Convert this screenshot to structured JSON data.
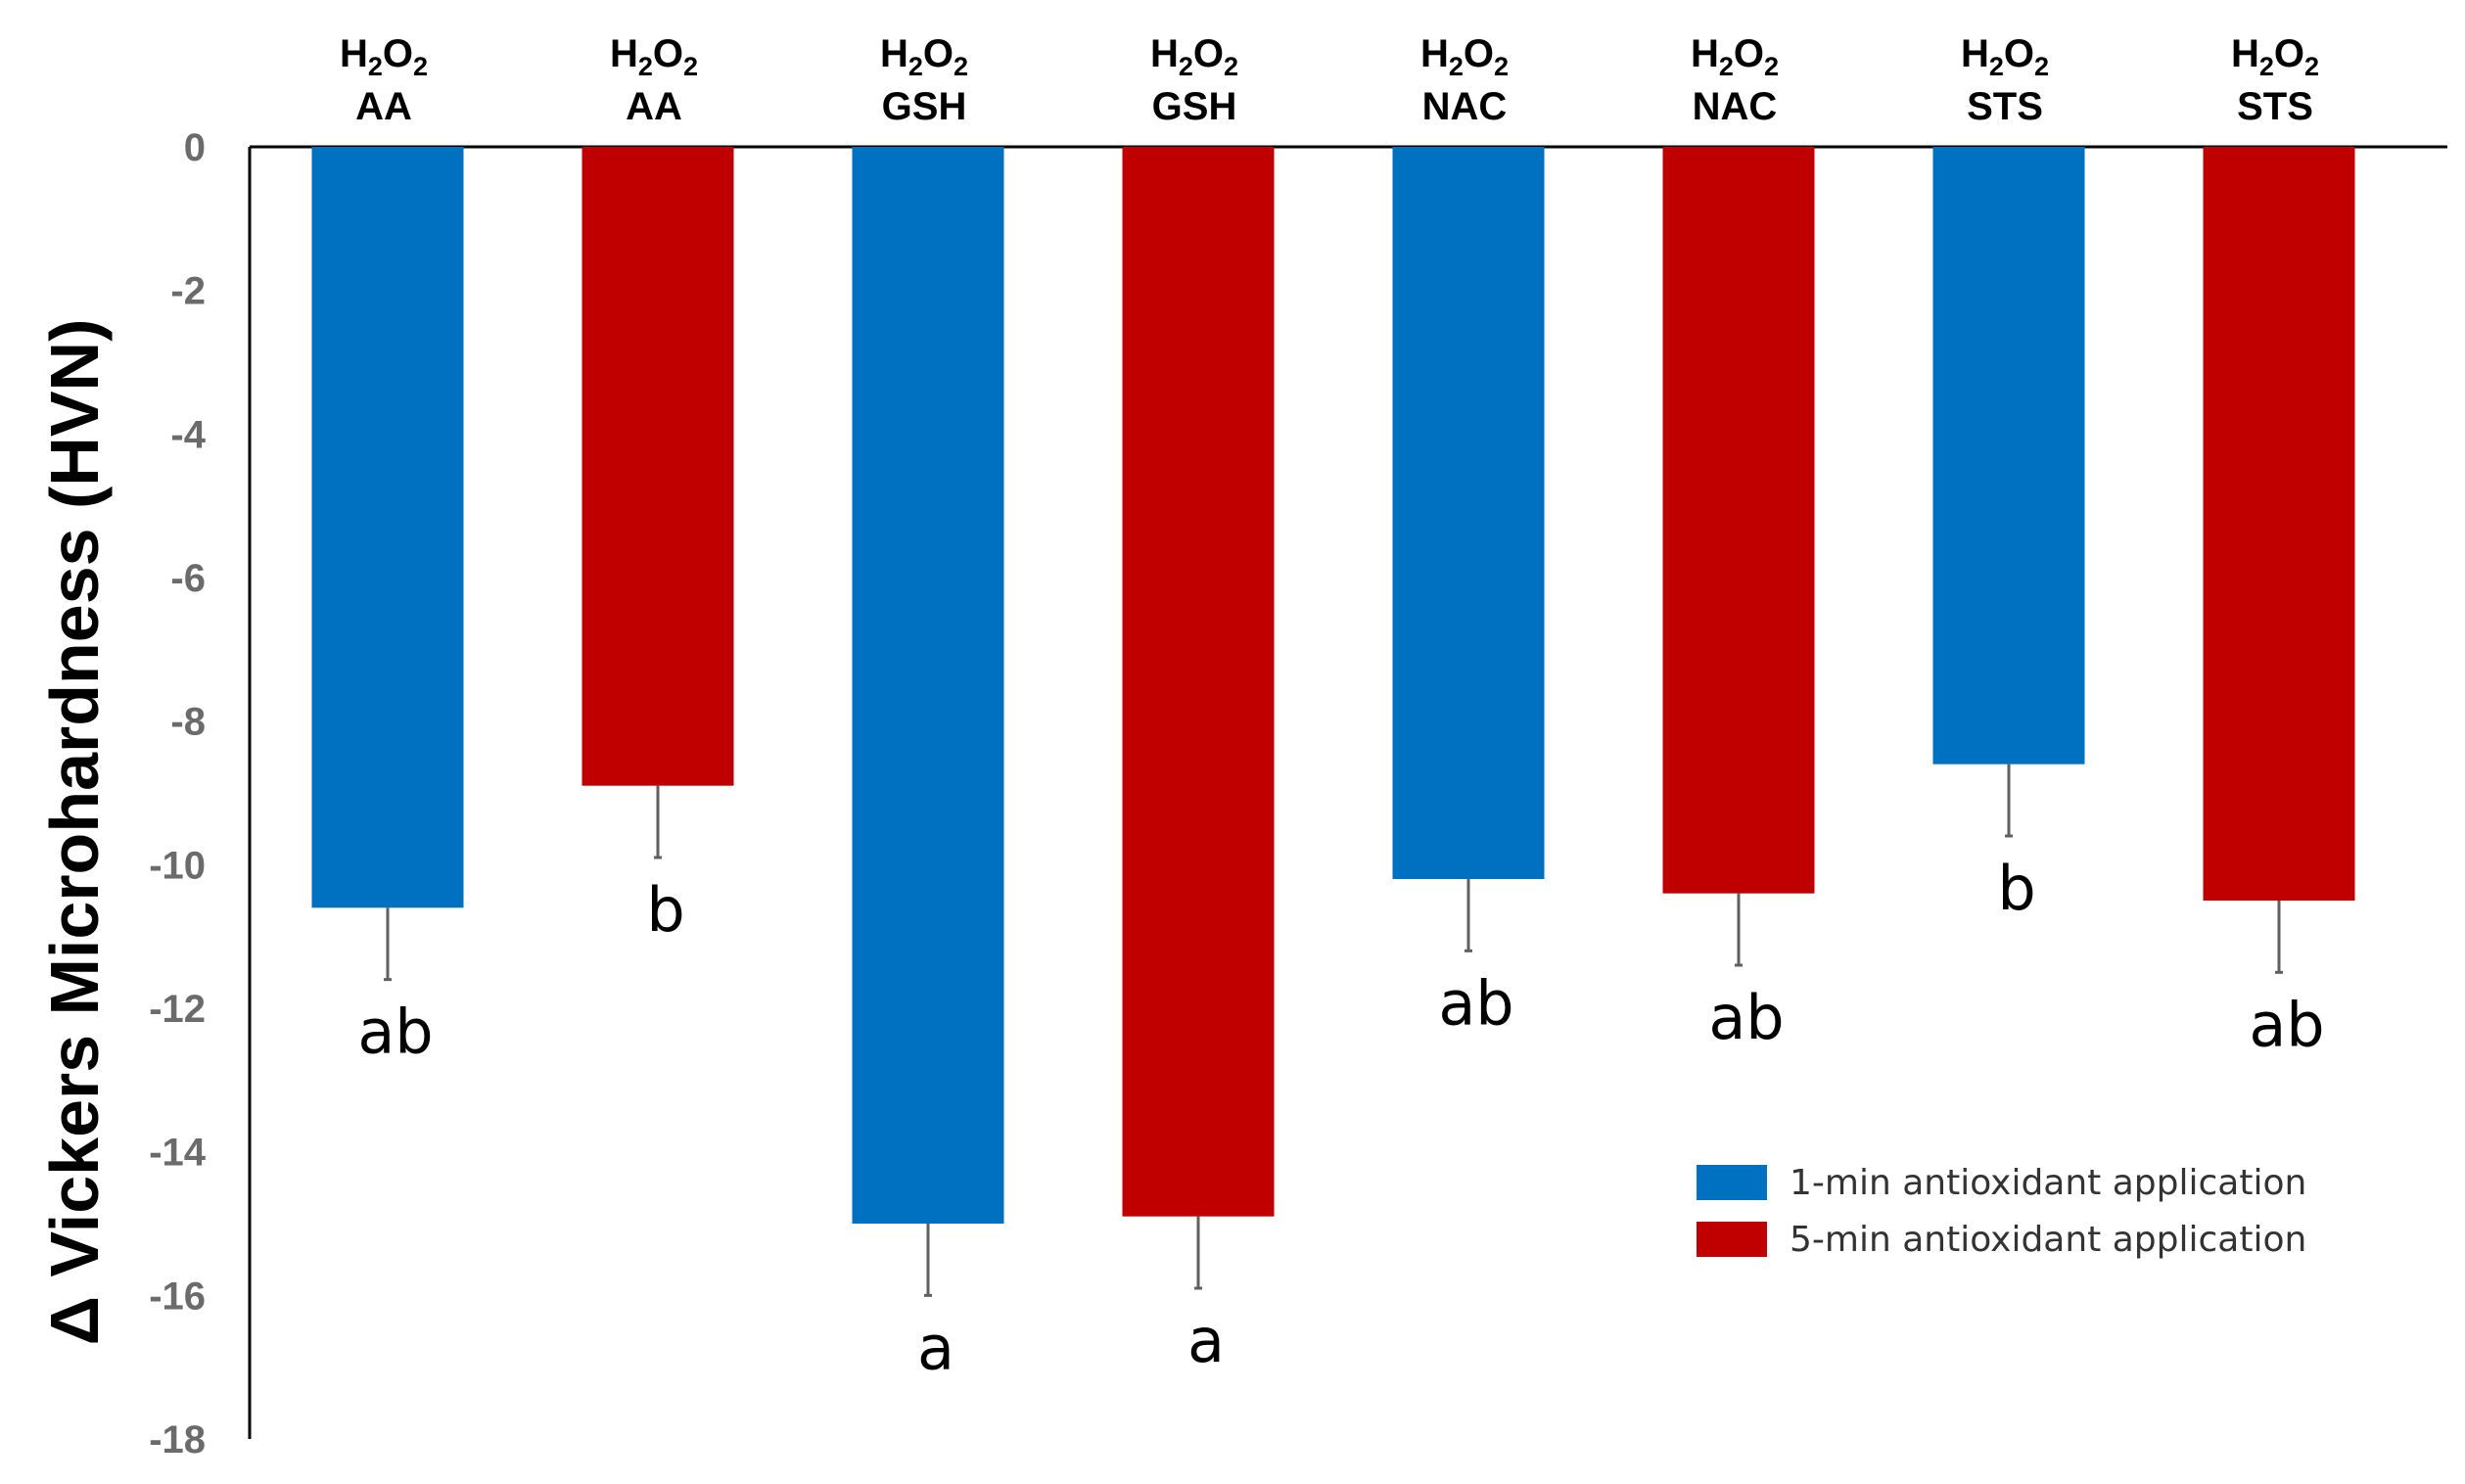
{
  "chart_data": {
    "type": "bar",
    "title": "",
    "xlabel": "",
    "ylabel": "Δ Vickers Microhardness (HVN)",
    "ylim": [
      -18,
      0
    ],
    "yticks": [
      0,
      -2,
      -4,
      -6,
      -8,
      -10,
      -12,
      -14,
      -16,
      -18
    ],
    "grid": false,
    "legend_position": "bottom-right",
    "colors": {
      "one_min": "#0070c0",
      "five_min": "#c00000",
      "error": "#606060"
    },
    "bars": [
      {
        "top": "H2O2",
        "bottom": "AA",
        "series": "1-min antioxidant application",
        "value": -10.6,
        "error": 1.0,
        "sig": "ab"
      },
      {
        "top": "H2O2",
        "bottom": "AA",
        "series": "5-min antioxidant application",
        "value": -8.9,
        "error": 1.0,
        "sig": "b"
      },
      {
        "top": "H2O2",
        "bottom": "GSH",
        "series": "1-min antioxidant application",
        "value": -15.0,
        "error": 1.0,
        "sig": "a"
      },
      {
        "top": "H2O2",
        "bottom": "GSH",
        "series": "5-min antioxidant application",
        "value": -14.9,
        "error": 1.0,
        "sig": "a"
      },
      {
        "top": "H2O2",
        "bottom": "NAC",
        "series": "1-min antioxidant application",
        "value": -10.2,
        "error": 1.0,
        "sig": "ab"
      },
      {
        "top": "H2O2",
        "bottom": "NAC",
        "series": "5-min antioxidant application",
        "value": -10.4,
        "error": 1.0,
        "sig": "ab"
      },
      {
        "top": "H2O2",
        "bottom": "STS",
        "series": "1-min antioxidant application",
        "value": -8.6,
        "error": 1.0,
        "sig": "b"
      },
      {
        "top": "H2O2",
        "bottom": "STS",
        "series": "5-min antioxidant application",
        "value": -10.5,
        "error": 1.0,
        "sig": "ab"
      }
    ],
    "legend": [
      {
        "label": "1-min antioxidant application",
        "color": "#0070c0"
      },
      {
        "label": "5-min antioxidant application",
        "color": "#c00000"
      }
    ]
  }
}
